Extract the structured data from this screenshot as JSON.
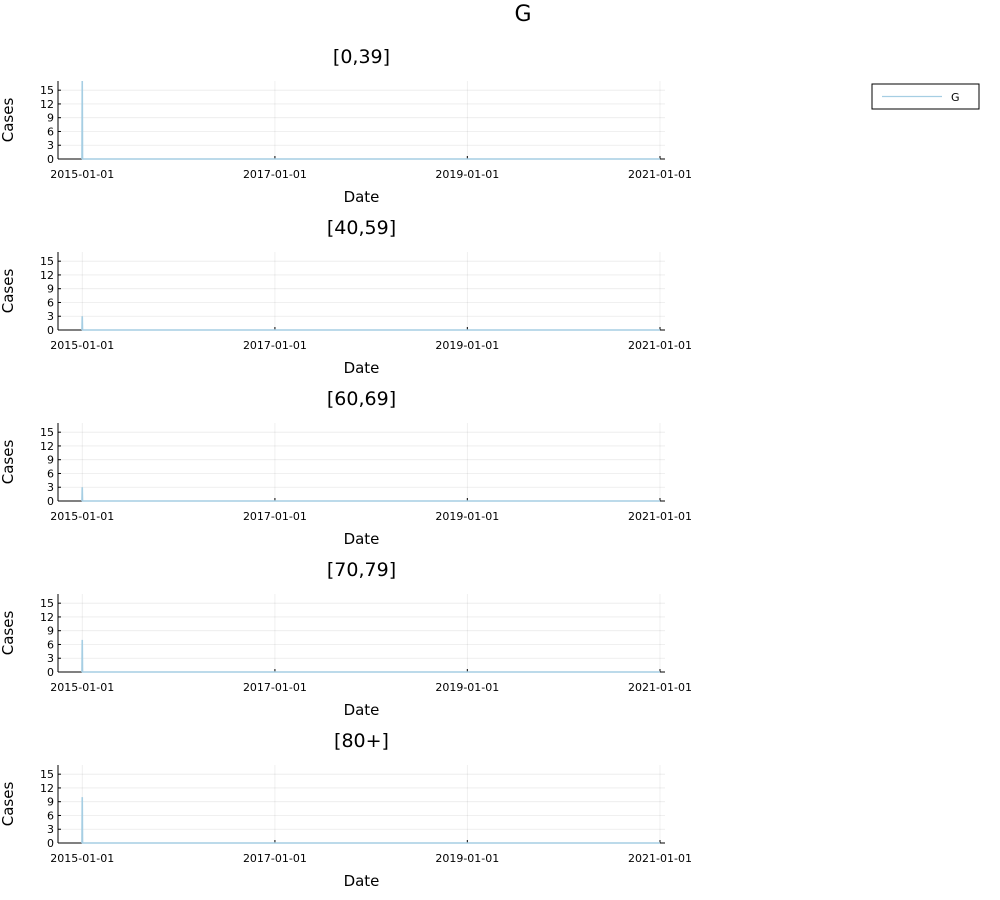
{
  "figure_title": "G",
  "legend": {
    "entries": [
      {
        "label": "G",
        "color": "#a6cee3"
      }
    ],
    "placement": "top-right"
  },
  "line_color": "#a6cee3",
  "chart_data": [
    {
      "type": "line",
      "title": "[0,39]",
      "xlabel": "Date",
      "ylabel": "Cases",
      "x_ticks": [
        "2015-01-01",
        "2017-01-01",
        "2019-01-01",
        "2021-01-01"
      ],
      "xlim": [
        "2014-10-01",
        "2021-01-20"
      ],
      "y_ticks": [
        0,
        3,
        6,
        9,
        12,
        15
      ],
      "ylim": [
        0,
        17
      ],
      "grid": true,
      "series": [
        {
          "name": "G",
          "x": [
            "2014-12-31",
            "2015-01-01",
            "2015-01-02",
            "2021-01-01"
          ],
          "y": [
            0,
            17,
            0,
            0
          ]
        }
      ]
    },
    {
      "type": "line",
      "title": "[40,59]",
      "xlabel": "Date",
      "ylabel": "Cases",
      "x_ticks": [
        "2015-01-01",
        "2017-01-01",
        "2019-01-01",
        "2021-01-01"
      ],
      "xlim": [
        "2014-10-01",
        "2021-01-20"
      ],
      "y_ticks": [
        0,
        3,
        6,
        9,
        12,
        15
      ],
      "ylim": [
        0,
        17
      ],
      "grid": true,
      "series": [
        {
          "name": "G",
          "x": [
            "2014-12-31",
            "2015-01-01",
            "2015-01-02",
            "2021-01-01"
          ],
          "y": [
            0,
            3,
            0,
            0
          ]
        }
      ]
    },
    {
      "type": "line",
      "title": "[60,69]",
      "xlabel": "Date",
      "ylabel": "Cases",
      "x_ticks": [
        "2015-01-01",
        "2017-01-01",
        "2019-01-01",
        "2021-01-01"
      ],
      "xlim": [
        "2014-10-01",
        "2021-01-20"
      ],
      "y_ticks": [
        0,
        3,
        6,
        9,
        12,
        15
      ],
      "ylim": [
        0,
        17
      ],
      "grid": true,
      "series": [
        {
          "name": "G",
          "x": [
            "2014-12-31",
            "2015-01-01",
            "2015-01-02",
            "2021-01-01"
          ],
          "y": [
            0,
            3,
            0,
            0
          ]
        }
      ]
    },
    {
      "type": "line",
      "title": "[70,79]",
      "xlabel": "Date",
      "ylabel": "Cases",
      "x_ticks": [
        "2015-01-01",
        "2017-01-01",
        "2019-01-01",
        "2021-01-01"
      ],
      "xlim": [
        "2014-10-01",
        "2021-01-20"
      ],
      "y_ticks": [
        0,
        3,
        6,
        9,
        12,
        15
      ],
      "ylim": [
        0,
        17
      ],
      "grid": true,
      "series": [
        {
          "name": "G",
          "x": [
            "2014-12-31",
            "2015-01-01",
            "2015-01-02",
            "2021-01-01"
          ],
          "y": [
            0,
            7,
            0,
            0
          ]
        }
      ]
    },
    {
      "type": "line",
      "title": "[80+]",
      "xlabel": "Date",
      "ylabel": "Cases",
      "x_ticks": [
        "2015-01-01",
        "2017-01-01",
        "2019-01-01",
        "2021-01-01"
      ],
      "xlim": [
        "2014-10-01",
        "2021-01-20"
      ],
      "y_ticks": [
        0,
        3,
        6,
        9,
        12,
        15
      ],
      "ylim": [
        0,
        17
      ],
      "grid": true,
      "series": [
        {
          "name": "G",
          "x": [
            "2014-12-31",
            "2015-01-01",
            "2015-01-02",
            "2021-01-01"
          ],
          "y": [
            0,
            10,
            0,
            0
          ]
        }
      ]
    }
  ]
}
